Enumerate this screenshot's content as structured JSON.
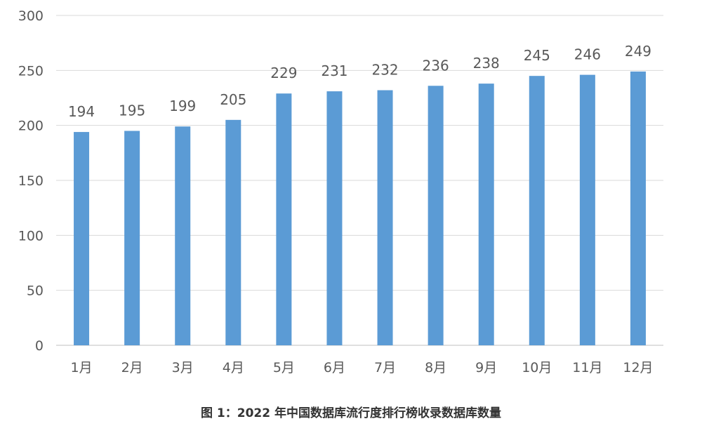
{
  "chart_data": {
    "type": "bar",
    "categories": [
      "1月",
      "2月",
      "3月",
      "4月",
      "5月",
      "6月",
      "7月",
      "8月",
      "9月",
      "10月",
      "11月",
      "12月"
    ],
    "values": [
      194,
      195,
      199,
      205,
      229,
      231,
      232,
      236,
      238,
      245,
      246,
      249
    ],
    "ylim": [
      0,
      300
    ],
    "yticks": [
      0,
      50,
      100,
      150,
      200,
      250,
      300
    ],
    "grid": true,
    "legend": "none",
    "data_labels": true,
    "bar_color": "#5b9bd5"
  },
  "caption": "图 1：2022 年中国数据库流行度排行榜收录数据库数量"
}
